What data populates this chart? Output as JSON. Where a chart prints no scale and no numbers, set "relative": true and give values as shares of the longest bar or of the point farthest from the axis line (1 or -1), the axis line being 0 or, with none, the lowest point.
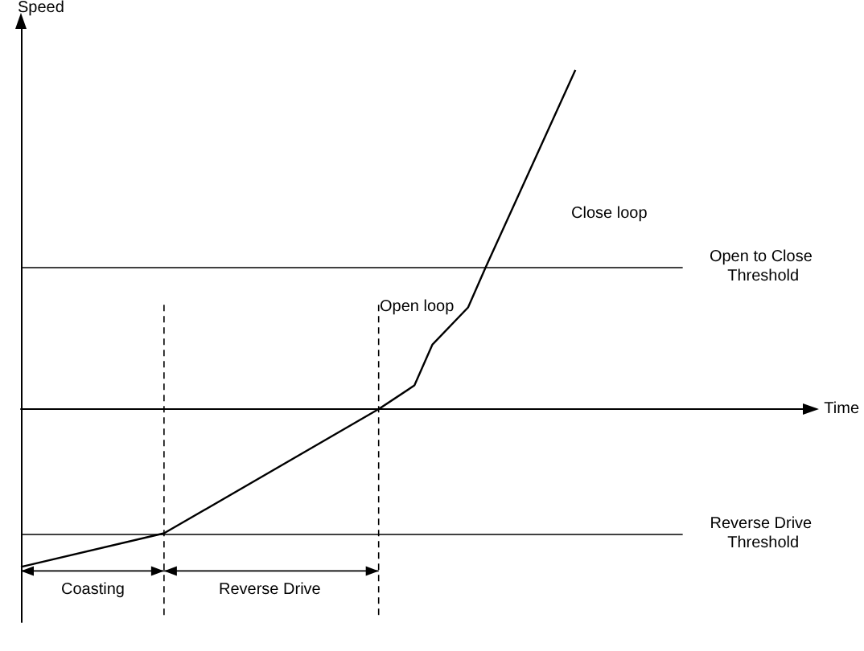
{
  "chart_data": {
    "type": "line",
    "relative": true,
    "xlabel": "Time",
    "ylabel": "Speed",
    "grid": false,
    "marker": "none",
    "line_style": "solid",
    "categories": [
      null,
      null,
      null,
      null,
      null,
      null,
      null,
      null,
      null,
      null,
      null,
      null,
      null,
      null,
      null,
      null,
      null,
      null,
      null,
      null,
      null,
      null,
      null,
      null,
      null,
      null,
      null,
      null,
      null,
      null,
      null,
      null,
      null,
      null,
      null,
      null,
      null,
      null,
      null,
      null,
      null,
      null,
      null,
      null,
      null
    ],
    "series": [
      {
        "color": "#000000",
        "values": [
          -0.465,
          null,
          null,
          null,
          null,
          null,
          null,
          null,
          -0.366,
          null,
          null,
          null,
          null,
          null,
          null,
          null,
          null,
          null,
          null,
          null,
          0,
          null,
          0.07,
          0.19,
          null,
          0.3,
          0.42,
          null,
          null,
          null,
          null,
          1,
          null,
          null,
          null,
          null,
          null,
          null,
          null,
          null,
          null,
          null,
          null,
          null,
          null
        ]
      }
    ],
    "ref_lines": [
      {
        "axis": "y",
        "value": 0.42,
        "label": "Open to Close Threshold",
        "color": "#000000"
      },
      {
        "axis": "y",
        "value": -0.366,
        "label": "Reverse Drive Threshold",
        "color": "#000000"
      }
    ],
    "annotations": [
      "Close loop",
      "Open loop",
      "Coasting",
      "Reverse Drive"
    ]
  }
}
